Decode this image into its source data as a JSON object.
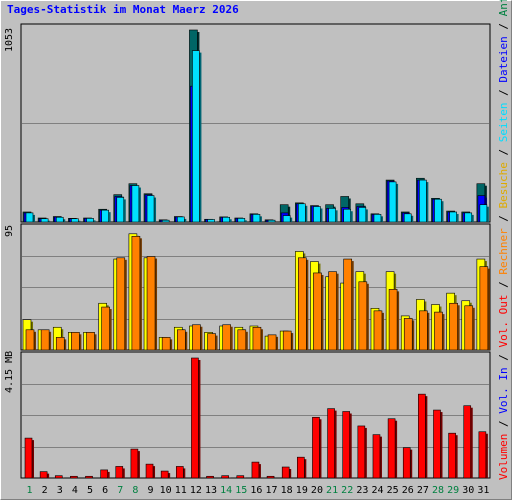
{
  "title": "Tages-Statistik im Monat Maerz 2026",
  "colors": {
    "anfragen": "#006666",
    "dateien": "#0000ff",
    "seiten": "#00e0ff",
    "besuche": "#ffff00",
    "rechner": "#ff8000",
    "volumen": "#ff0000",
    "weekend_label": "#008040",
    "day_label": "#000000"
  },
  "legend": {
    "upper": [
      {
        "label": "Anfragen",
        "color": "#008040"
      },
      {
        "label": "Dateien",
        "color": "#0000ff"
      },
      {
        "label": "Seiten",
        "color": "#00ddff"
      }
    ],
    "middle": [
      {
        "label": "Besuche",
        "color": "#ddaa00"
      },
      {
        "label": "Rechner",
        "color": "#ff8000"
      }
    ],
    "lower": [
      {
        "label": "Vol. Out",
        "color": "#ff0000"
      },
      {
        "label": "Vol. In",
        "color": "#0000ff"
      },
      {
        "label": "Volumen",
        "color": "#ff0000"
      }
    ]
  },
  "chart_data": {
    "type": "bar",
    "categories": [
      "1",
      "2",
      "3",
      "4",
      "5",
      "6",
      "7",
      "8",
      "9",
      "10",
      "11",
      "12",
      "13",
      "14",
      "15",
      "16",
      "17",
      "18",
      "19",
      "20",
      "21",
      "22",
      "23",
      "24",
      "25",
      "26",
      "27",
      "28",
      "29",
      "30",
      "31"
    ],
    "weekend_days": [
      "1",
      "7",
      "8",
      "14",
      "15",
      "21",
      "22",
      "28",
      "29"
    ],
    "panels": [
      {
        "name": "upper",
        "ymax_label": "1053",
        "ymax": 1053,
        "series": [
          {
            "name": "Anfragen",
            "values": [
              55,
              22,
              30,
              20,
              22,
              70,
              150,
              210,
              155,
              12,
              30,
              1053,
              15,
              28,
              22,
              45,
              12,
              95,
              105,
              90,
              95,
              140,
              100,
              45,
              230,
              55,
              240,
              130,
              60,
              55,
              210
            ]
          },
          {
            "name": "Dateien",
            "values": [
              50,
              18,
              28,
              18,
              20,
              65,
              140,
              200,
              150,
              10,
              28,
              745,
              14,
              26,
              20,
              42,
              10,
              50,
              100,
              88,
              75,
              80,
              85,
              42,
              225,
              50,
              230,
              125,
              55,
              50,
              145
            ]
          },
          {
            "name": "Seiten",
            "values": [
              50,
              18,
              26,
              18,
              20,
              65,
              135,
              200,
              145,
              10,
              28,
              940,
              14,
              26,
              20,
              42,
              10,
              35,
              100,
              85,
              75,
              70,
              80,
              42,
              220,
              45,
              230,
              125,
              55,
              50,
              95
            ]
          }
        ]
      },
      {
        "name": "middle",
        "ymax_label": "95",
        "ymax": 95,
        "series": [
          {
            "name": "Besuche",
            "values": [
              24,
              16,
              18,
              14,
              14,
              37,
              72,
              92,
              73,
              10,
              18,
              19,
              14,
              19,
              18,
              19,
              11,
              15,
              78,
              70,
              58,
              53,
              62,
              33,
              62,
              27,
              40,
              36,
              45,
              39,
              72
            ]
          },
          {
            "name": "Rechner",
            "values": [
              16,
              16,
              10,
              14,
              14,
              34,
              73,
              90,
              74,
              10,
              16,
              20,
              13,
              20,
              16,
              18,
              12,
              15,
              73,
              61,
              62,
              72,
              54,
              31,
              48,
              25,
              31,
              30,
              37,
              35,
              66
            ]
          }
        ]
      },
      {
        "name": "lower",
        "ymax_label": "4.15 MB",
        "ymax": 4.15,
        "series": [
          {
            "name": "Volumen",
            "values": [
              1.38,
              0.22,
              0.08,
              0.06,
              0.06,
              0.28,
              0.4,
              1.0,
              0.48,
              0.24,
              0.4,
              4.15,
              0.06,
              0.08,
              0.08,
              0.55,
              0.06,
              0.38,
              0.72,
              2.1,
              2.4,
              2.3,
              1.8,
              1.5,
              2.05,
              1.05,
              2.9,
              2.35,
              1.55,
              2.5,
              1.6
            ]
          }
        ]
      }
    ]
  }
}
